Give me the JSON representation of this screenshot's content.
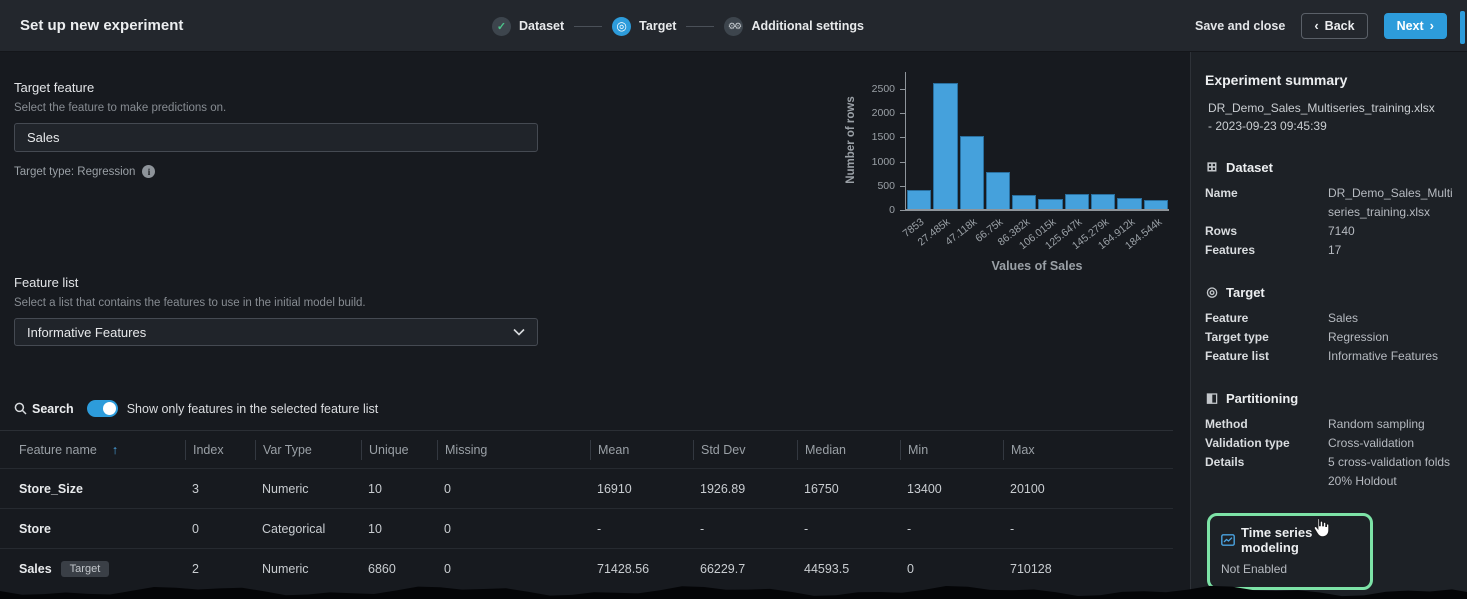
{
  "header": {
    "title": "Set up new experiment",
    "steps": [
      {
        "label": "Dataset",
        "state": "done"
      },
      {
        "label": "Target",
        "state": "active"
      },
      {
        "label": "Additional settings",
        "state": "todo"
      }
    ],
    "save_and_close": "Save and close",
    "back_label": "Back",
    "next_label": "Next"
  },
  "icons": {
    "check": "✓",
    "target": "◎",
    "gears": "⚙",
    "chevron_left": "‹",
    "chevron_right": "›",
    "chevron_down": "⌄",
    "info": "i",
    "sort_ascending": "↑",
    "dataset": "⊞",
    "partitioning": "◧"
  },
  "target_feature": {
    "heading": "Target feature",
    "description": "Select the feature to make predictions on.",
    "value": "Sales",
    "target_type_label": "Target type: Regression"
  },
  "chart_data": {
    "type": "bar",
    "title": "",
    "xlabel": "Values of Sales",
    "ylabel": "Number of rows",
    "categories": [
      "7853",
      "27.485k",
      "47.118k",
      "66.75k",
      "86.382k",
      "106.015k",
      "125.647k",
      "145.279k",
      "164.912k",
      "184.544k"
    ],
    "values": [
      390,
      2600,
      1500,
      760,
      280,
      215,
      310,
      320,
      230,
      180
    ],
    "yticks": [
      0,
      500,
      1000,
      1500,
      2000,
      2500
    ],
    "ylim": [
      0,
      2850
    ],
    "grid": false,
    "bar_color": "#45a1dc"
  },
  "feature_list": {
    "heading": "Feature list",
    "description": "Select a list that contains the features to use in the initial model build.",
    "selected": "Informative Features"
  },
  "search": {
    "label": "Search",
    "toggle_on": true,
    "toggle_label": "Show only features in the selected feature list"
  },
  "table": {
    "columns": [
      "Feature name",
      "Index",
      "Var Type",
      "Unique",
      "Missing",
      "Mean",
      "Std Dev",
      "Median",
      "Min",
      "Max"
    ],
    "rows": [
      {
        "name": "Store_Size",
        "badge": null,
        "cells": [
          "3",
          "Numeric",
          "10",
          "0",
          "16910",
          "1926.89",
          "16750",
          "13400",
          "20100"
        ]
      },
      {
        "name": "Store",
        "badge": null,
        "cells": [
          "0",
          "Categorical",
          "10",
          "0",
          "-",
          "-",
          "-",
          "-",
          "-"
        ]
      },
      {
        "name": "Sales",
        "badge": "Target",
        "cells": [
          "2",
          "Numeric",
          "6860",
          "0",
          "71428.56",
          "66229.7",
          "44593.5",
          "0",
          "710128"
        ]
      }
    ]
  },
  "sidebar": {
    "title": "Experiment summary",
    "dataset_ref": "DR_Demo_Sales_Multiseries_training.xlsx - 2023-09-23 09:45:39",
    "dataset": {
      "heading": "Dataset",
      "rows": [
        {
          "label": "Name",
          "value": "DR_Demo_Sales_Multiseries_training.xlsx"
        },
        {
          "label": "Rows",
          "value": "7140"
        },
        {
          "label": "Features",
          "value": "17"
        }
      ]
    },
    "target": {
      "heading": "Target",
      "rows": [
        {
          "label": "Feature",
          "value": "Sales"
        },
        {
          "label": "Target type",
          "value": "Regression"
        },
        {
          "label": "Feature list",
          "value": "Informative Features"
        }
      ]
    },
    "partitioning": {
      "heading": "Partitioning",
      "rows": [
        {
          "label": "Method",
          "value": "Random sampling"
        },
        {
          "label": "Validation type",
          "value": "Cross-validation"
        },
        {
          "label": "Details",
          "value": "5 cross-validation folds\n20% Holdout"
        }
      ]
    },
    "time_series": {
      "title": "Time series modeling",
      "status": "Not Enabled"
    }
  }
}
